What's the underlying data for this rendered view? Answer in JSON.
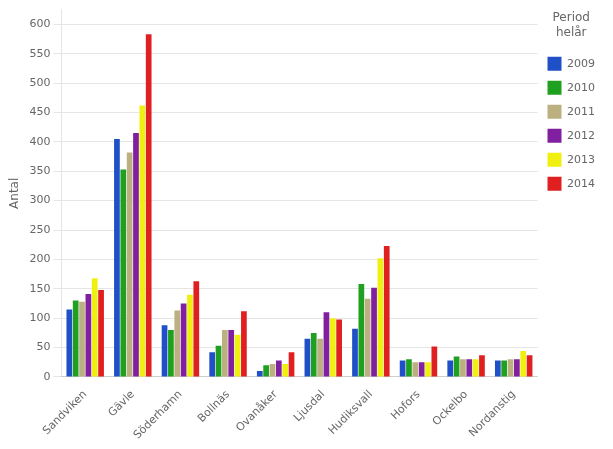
{
  "chart_data": {
    "type": "bar",
    "ylabel": "Antal",
    "legend_title": "Period\nhelår",
    "categories": [
      "Sandviken",
      "Gävle",
      "Söderhamn",
      "Bollnäs",
      "Ovanåker",
      "Ljusdal",
      "Hudiksvall",
      "Hofors",
      "Ockelbo",
      "Nordanstig"
    ],
    "series": [
      {
        "name": "2009",
        "color": "#2050c8",
        "values": [
          115,
          405,
          88,
          42,
          10,
          65,
          82,
          28,
          28,
          28
        ]
      },
      {
        "name": "2010",
        "color": "#20a020",
        "values": [
          130,
          353,
          80,
          53,
          20,
          75,
          158,
          30,
          35,
          28
        ]
      },
      {
        "name": "2011",
        "color": "#bdb080",
        "values": [
          128,
          382,
          113,
          80,
          22,
          65,
          133,
          25,
          30,
          30
        ]
      },
      {
        "name": "2012",
        "color": "#8020a0",
        "values": [
          141,
          415,
          125,
          80,
          28,
          110,
          152,
          25,
          30,
          30
        ]
      },
      {
        "name": "2013",
        "color": "#f0f010",
        "values": [
          168,
          462,
          140,
          72,
          22,
          100,
          202,
          25,
          30,
          44
        ]
      },
      {
        "name": "2014",
        "color": "#e02020",
        "values": [
          148,
          583,
          163,
          112,
          42,
          98,
          223,
          52,
          37,
          37
        ]
      }
    ],
    "ylim": [
      0,
      625
    ],
    "yticks": [
      0,
      50,
      100,
      150,
      200,
      250,
      300,
      350,
      400,
      450,
      500,
      550,
      600
    ],
    "grid": true,
    "legend": "right"
  }
}
